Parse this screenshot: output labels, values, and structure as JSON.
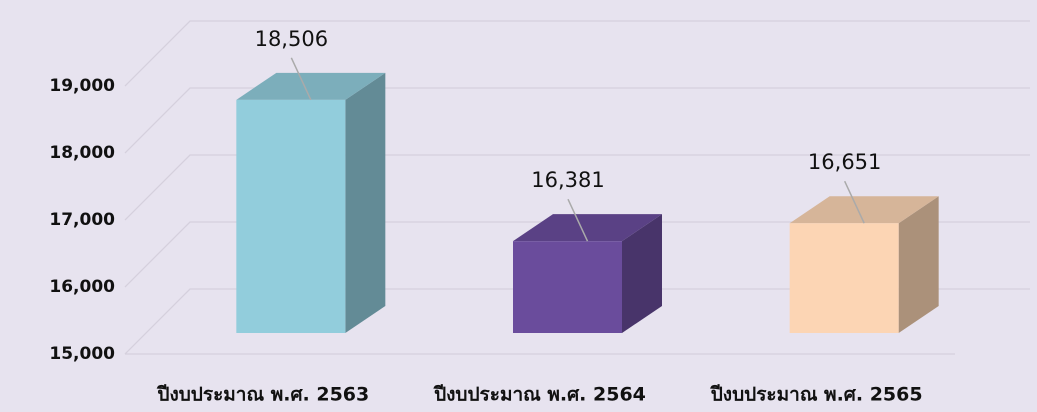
{
  "chart_data": {
    "type": "bar3d",
    "categories": [
      "ปีงบประมาณ พ.ศ. 2563",
      "ปีงบประมาณ พ.ศ. 2564",
      "ปีงบประมาณ พ.ศ. 2565"
    ],
    "values": [
      18506,
      16381,
      16651
    ],
    "value_labels": [
      "18,506",
      "16,381",
      "16,651"
    ],
    "colors": [
      "#92cddc",
      "#6a4c9c",
      "#fcd5b4"
    ],
    "ylim": [
      15000,
      19000
    ],
    "yticks": [
      {
        "value": 15000,
        "label": "15,000"
      },
      {
        "value": 16000,
        "label": "16,000"
      },
      {
        "value": 17000,
        "label": "17,000"
      },
      {
        "value": 18000,
        "label": "18,000"
      },
      {
        "value": 19000,
        "label": "19,000"
      }
    ],
    "grid": true
  }
}
